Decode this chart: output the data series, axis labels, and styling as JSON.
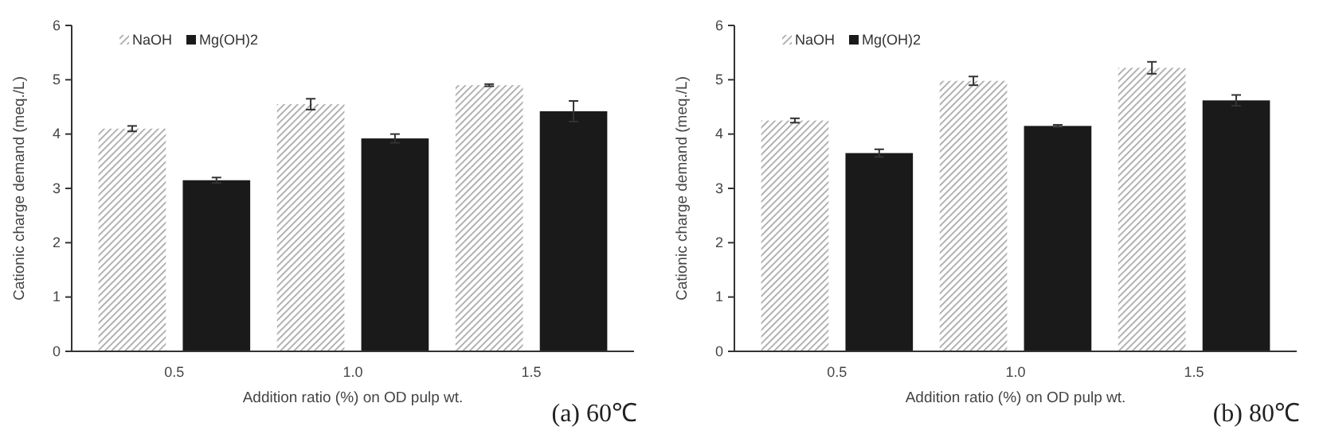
{
  "chart_data": [
    {
      "type": "bar",
      "xlabel": "Addition ratio (%) on OD pulp wt.",
      "ylabel": "Cationic charge demand (meq./L)",
      "categories": [
        "0.5",
        "1.0",
        "1.5"
      ],
      "ylim": [
        0,
        6
      ],
      "yticks": [
        0,
        1,
        2,
        3,
        4,
        5,
        6
      ],
      "grid": false,
      "legend": "top left",
      "annotations": [
        "(a) 60℃"
      ],
      "series": [
        {
          "name": "NaOH",
          "color": "#a0a0a0",
          "values": [
            4.1,
            4.55,
            4.9
          ],
          "errors": [
            0.05,
            0.1,
            0.02
          ]
        },
        {
          "name": "Mg(OH)2",
          "color": "#1a1a1a",
          "values": [
            3.15,
            3.92,
            4.42
          ],
          "errors": [
            0.05,
            0.08,
            0.19
          ]
        }
      ]
    },
    {
      "type": "bar",
      "xlabel": "Addition ratio (%) on OD pulp wt.",
      "ylabel": "Cationic charge demand (meq./L)",
      "categories": [
        "0.5",
        "1.0",
        "1.5"
      ],
      "ylim": [
        0,
        6
      ],
      "yticks": [
        0,
        1,
        2,
        3,
        4,
        5,
        6
      ],
      "grid": false,
      "legend": "top left",
      "annotations": [
        "(b) 80℃"
      ],
      "series": [
        {
          "name": "NaOH",
          "color": "#a0a0a0",
          "values": [
            4.25,
            4.98,
            5.22
          ],
          "errors": [
            0.04,
            0.08,
            0.11
          ]
        },
        {
          "name": "Mg(OH)2",
          "color": "#1a1a1a",
          "values": [
            3.65,
            4.15,
            4.62
          ],
          "errors": [
            0.07,
            0.02,
            0.1
          ]
        }
      ]
    }
  ]
}
